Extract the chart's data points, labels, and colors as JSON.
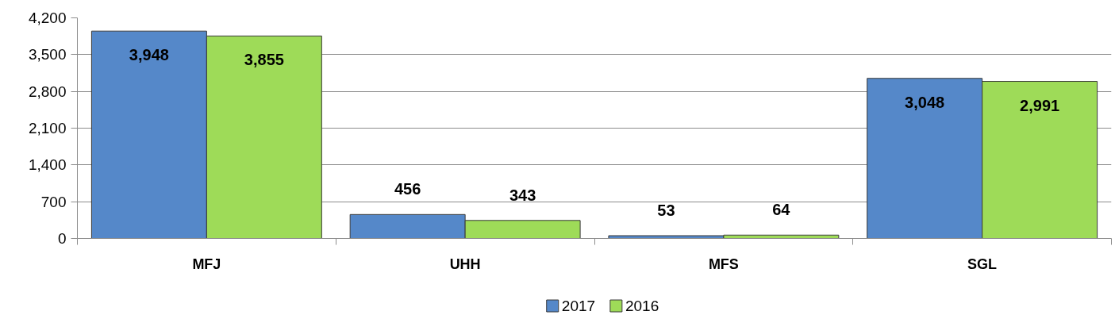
{
  "chart_data": {
    "type": "bar",
    "categories": [
      "MFJ",
      "UHH",
      "MFS",
      "SGL"
    ],
    "series": [
      {
        "name": "2017",
        "color": "#5588c9",
        "values": [
          3948,
          456,
          53,
          3048
        ],
        "value_labels": [
          "3,948",
          "456",
          "53",
          "3,048"
        ]
      },
      {
        "name": "2016",
        "color": "#9edb58",
        "values": [
          3855,
          343,
          64,
          2991
        ],
        "value_labels": [
          "3,855",
          "343",
          "64",
          "2,991"
        ]
      }
    ],
    "ylim": [
      0,
      4200
    ],
    "yticks": [
      0,
      700,
      {
        "value": 1400,
        "label": "1,400"
      },
      {
        "value": 2100,
        "label": "2,100"
      },
      {
        "value": 2800,
        "label": "2,800"
      },
      {
        "value": 3500,
        "label": "3,500"
      },
      {
        "value": 4200,
        "label": "4,200"
      }
    ],
    "grid": "y",
    "legend": "bottom"
  }
}
